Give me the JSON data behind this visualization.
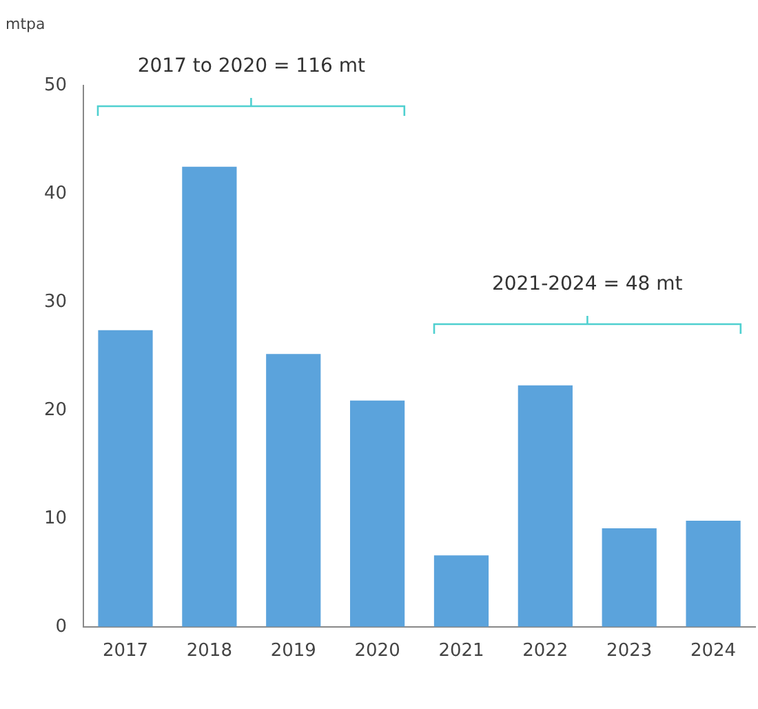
{
  "chart_data": {
    "type": "bar",
    "ylabel": "mtpa",
    "categories": [
      "2017",
      "2018",
      "2019",
      "2020",
      "2021",
      "2022",
      "2023",
      "2024"
    ],
    "values": [
      27.4,
      42.5,
      25.2,
      20.9,
      6.6,
      22.3,
      9.1,
      9.8
    ],
    "color": "#5ba3dc",
    "ylim": [
      0,
      50
    ],
    "yticks": [
      0,
      10,
      20,
      30,
      40,
      50
    ],
    "grid": false,
    "legend": false,
    "annotations": [
      "2017 to 2020 = 116 mt",
      "2021-2024 = 48 mt"
    ]
  }
}
